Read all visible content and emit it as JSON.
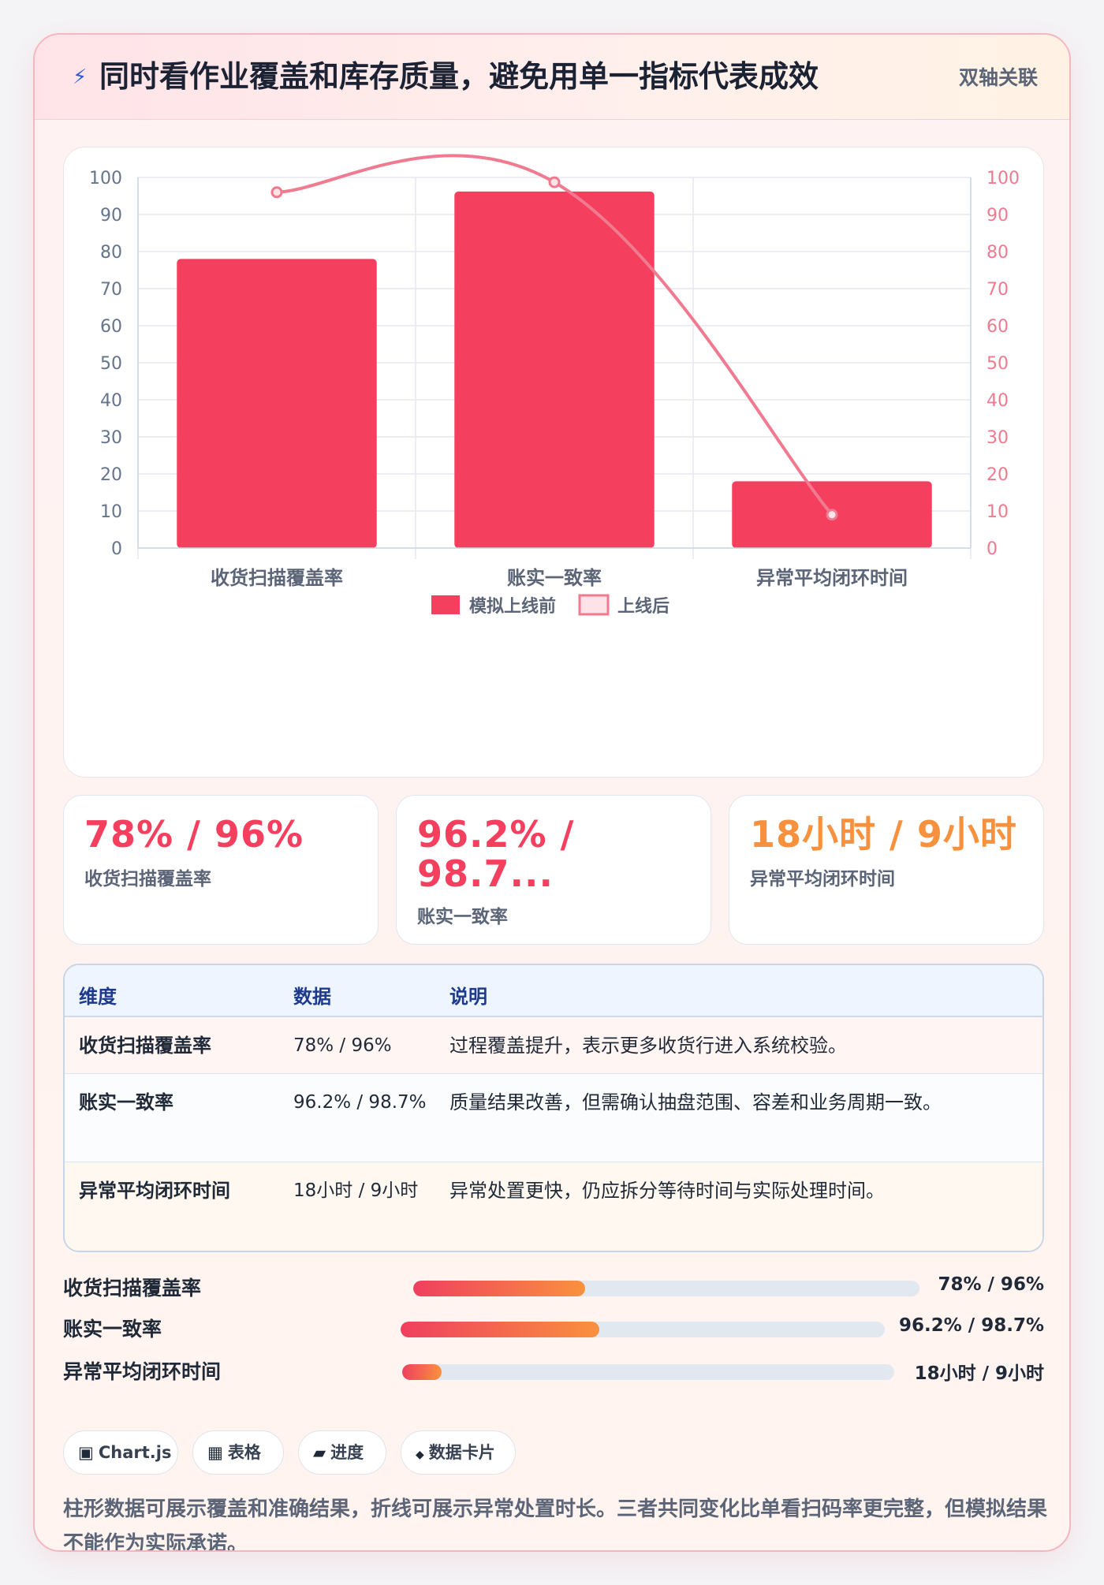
{
  "header": {
    "icon": "lightning-icon",
    "title": "同时看作业覆盖和库存质量，避免用单一指标代表成效",
    "badge": "双轴关联"
  },
  "chart_data": {
    "type": "bar",
    "categories": [
      "收货扫描覆盖率",
      "账实一致率",
      "异常平均闭环时间"
    ],
    "series": [
      {
        "name": "模拟上线前",
        "kind": "bar",
        "axis": "left",
        "values": [
          78,
          96.2,
          18
        ],
        "color": "#f43f5e"
      },
      {
        "name": "上线后",
        "kind": "line",
        "axis": "right",
        "values": [
          96,
          98.7,
          9
        ],
        "color": "#f07a8f"
      }
    ],
    "y_left": {
      "min": 0,
      "max": 100,
      "ticks": [
        0,
        10,
        20,
        30,
        40,
        50,
        60,
        70,
        80,
        90,
        100
      ]
    },
    "y_right": {
      "min": 0,
      "max": 100,
      "ticks": [
        0,
        10,
        20,
        30,
        40,
        50,
        60,
        70,
        80,
        90,
        100
      ]
    },
    "grid": true,
    "legend": "bottom"
  },
  "kpis": [
    {
      "value": "78% / 96%",
      "label": "收货扫描覆盖率",
      "color": "#f43f5e"
    },
    {
      "value": "96.2% / 98.7...",
      "label": "账实一致率",
      "color": "#f43f5e"
    },
    {
      "value": "18小时 / 9小时",
      "label": "异常平均闭环时间",
      "color": "#f7913d"
    }
  ],
  "table": {
    "headers": [
      "维度",
      "数据",
      "说明"
    ],
    "rows": [
      {
        "dim": "收货扫描覆盖率",
        "val": "78% / 96%",
        "desc": "过程覆盖提升，表示更多收货行进入系统校验。"
      },
      {
        "dim": "账实一致率",
        "val": "96.2% / 98.7%",
        "desc": "质量结果改善，但需确认抽盘范围、容差和业务周期一致。"
      },
      {
        "dim": "异常平均闭环时间",
        "val": "18小时 / 9小时",
        "desc": "异常处置更快，仍应拆分等待时间与实际处理时间。"
      }
    ]
  },
  "progress": [
    {
      "label": "收货扫描覆盖率",
      "value": "78% / 96%",
      "fill": 0.34
    },
    {
      "label": "账实一致率",
      "value": "96.2% / 98.7%",
      "fill": 0.41
    },
    {
      "label": "异常平均闭环时间",
      "value": "18小时 / 9小时",
      "fill": 0.08
    }
  ],
  "chips": [
    {
      "icon": "chart-icon",
      "glyph": "▣",
      "label": "Chart.js"
    },
    {
      "icon": "table-icon",
      "glyph": "▦",
      "label": "表格"
    },
    {
      "icon": "progress-icon",
      "glyph": "▰",
      "label": "进度"
    },
    {
      "icon": "card-icon",
      "glyph": "◆",
      "label": "数据卡片"
    }
  ],
  "footnote": "柱形数据可展示覆盖和准确结果，折线可展示异常处置时长。三者共同变化比单看扫码率更完整，但模拟结果不能作为实际承诺。"
}
